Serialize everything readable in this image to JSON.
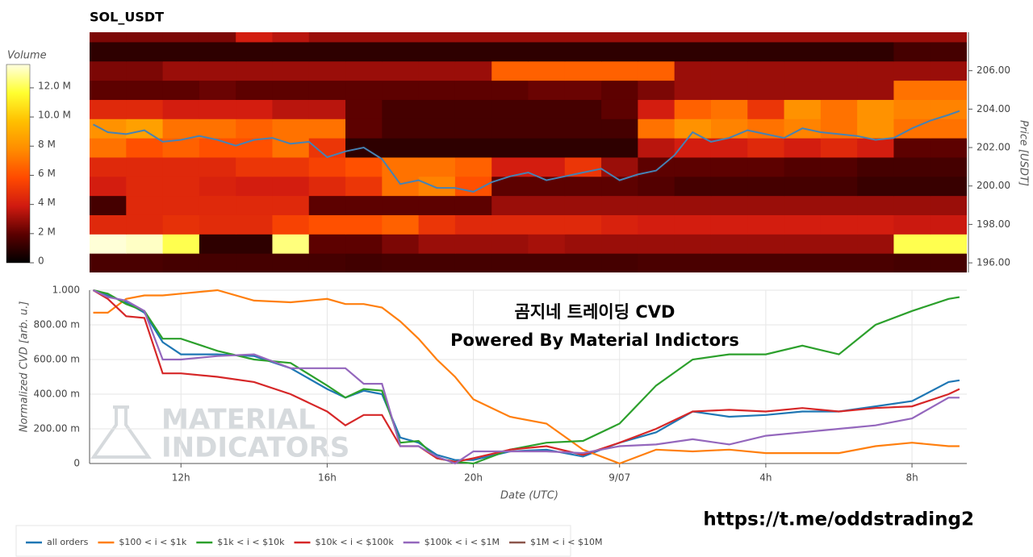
{
  "chart_data": [
    {
      "type": "heatmap",
      "title": "SOL_USDT",
      "x": [
        10,
        11,
        12,
        13,
        14,
        15,
        16,
        17,
        18,
        19,
        20,
        21,
        22,
        23,
        24,
        25,
        26,
        27,
        28,
        29,
        30,
        31,
        32,
        33
      ],
      "xlim": [
        9.5,
        33.5
      ],
      "y": [
        196,
        197,
        198,
        199,
        200,
        201,
        202,
        203,
        204,
        205,
        206,
        207,
        208
      ],
      "ylim": [
        195.5,
        208
      ],
      "ylabel": "Price [USDT]",
      "yticks": [
        {
          "value": 196,
          "label": "196.00"
        },
        {
          "value": 198,
          "label": "198.00"
        },
        {
          "value": 200,
          "label": "200.00"
        },
        {
          "value": 202,
          "label": "202.00"
        },
        {
          "value": 204,
          "label": "204.00"
        },
        {
          "value": 206,
          "label": "206.00"
        }
      ],
      "z": [
        [
          1.6,
          1.6,
          1.5,
          1.5,
          1.5,
          1.5,
          1.5,
          1.4,
          1.5,
          1.5,
          1.5,
          1.5,
          1.5,
          1.5,
          1.5,
          1.6,
          1.6,
          1.6,
          1.6,
          1.6,
          1.6,
          1.6,
          1.5,
          1.5
        ],
        [
          13.5,
          13.3,
          12,
          1,
          1,
          12.5,
          2,
          2,
          2.5,
          3,
          3,
          3,
          3.2,
          3,
          3,
          3,
          3,
          3,
          3,
          3,
          3,
          3,
          12,
          12
        ],
        [
          4.5,
          4.5,
          4.8,
          4.6,
          4.6,
          5.5,
          6,
          6,
          6.5,
          5,
          4.5,
          4.5,
          4.5,
          4.5,
          4.2,
          4,
          4,
          4,
          4,
          4,
          4,
          4,
          3.8,
          3.8
        ],
        [
          1.5,
          4.5,
          4.5,
          4.5,
          4.5,
          4.5,
          2,
          2,
          2,
          2,
          2,
          3,
          3,
          3,
          3,
          3,
          3,
          3,
          3,
          3,
          3,
          3,
          3,
          3
        ],
        [
          4,
          4.5,
          4.5,
          4.2,
          4,
          4,
          4.5,
          5,
          7,
          7.5,
          6,
          2,
          2,
          2,
          2,
          1.8,
          1.5,
          1.5,
          1.5,
          1.5,
          1.5,
          1.2,
          1.2,
          1.2
        ],
        [
          4.5,
          4.5,
          4.5,
          4.5,
          5,
          5,
          5.5,
          6,
          7,
          7,
          6.5,
          4,
          4,
          5,
          3,
          2,
          2,
          2,
          2,
          1.8,
          1.8,
          1.5,
          1.5,
          1.5
        ],
        [
          7,
          6,
          6.5,
          6,
          6,
          7,
          5,
          1,
          1,
          1,
          1,
          1,
          1,
          1,
          1,
          3.5,
          4,
          4,
          4.5,
          4,
          4.5,
          4,
          2,
          2
        ],
        [
          8,
          8.5,
          7,
          7,
          6.5,
          7,
          7,
          2,
          1.5,
          1.5,
          1.5,
          1.5,
          1.5,
          1.5,
          1.5,
          7,
          8,
          7.5,
          7,
          7.5,
          7,
          8,
          7,
          7
        ],
        [
          4.5,
          4.5,
          4,
          4,
          4,
          3.5,
          3.5,
          2,
          1.5,
          1.5,
          1.5,
          1.5,
          1.5,
          1.5,
          2,
          4,
          6.5,
          7,
          5,
          8,
          7,
          8,
          7.5,
          7.5
        ],
        [
          2,
          2,
          2,
          2.2,
          2,
          2,
          2,
          2,
          2,
          2,
          2,
          2,
          2.2,
          2.2,
          2,
          2.5,
          3,
          3,
          3,
          3,
          3,
          3,
          7,
          7
        ],
        [
          2.5,
          2.5,
          3,
          3,
          3,
          3,
          3,
          3,
          3,
          3,
          3,
          6.5,
          6.5,
          6.5,
          6.5,
          6.5,
          3,
          3,
          3,
          3,
          3,
          3,
          3,
          3
        ],
        [
          1,
          1,
          1,
          1,
          1,
          1,
          1,
          1,
          1,
          1,
          1,
          1,
          1,
          1,
          1,
          1,
          1,
          1,
          1,
          1,
          1,
          1,
          1.5,
          1.5
        ],
        [
          2.5,
          2.5,
          2.5,
          2.5,
          4,
          3.5,
          3,
          3,
          3,
          3,
          3,
          3,
          3,
          3,
          3,
          3,
          3,
          3,
          3,
          3,
          3,
          3,
          3,
          3
        ]
      ],
      "zlim": [
        0,
        13.6
      ],
      "colorscale": [
        "#000000",
        "#5a0000",
        "#d01a10",
        "#ff4a00",
        "#ff8c00",
        "#ffc000",
        "#ffff30",
        "#ffffe0"
      ],
      "colorbar": {
        "title": "Volume",
        "ticks": [
          0,
          {
            "value": 2,
            "label": "2 M"
          },
          {
            "value": 4,
            "label": "4 M"
          },
          {
            "value": 6,
            "label": "6 M"
          },
          {
            "value": 8,
            "label": "8 M"
          },
          {
            "value": 10,
            "label": "10.0 M"
          },
          {
            "value": 12,
            "label": "12.0 M"
          }
        ]
      },
      "price_line": {
        "color": "#4682b4",
        "x": [
          9.6,
          10,
          10.5,
          11,
          11.5,
          12,
          12.5,
          13,
          13.5,
          14,
          14.5,
          15,
          15.5,
          16,
          16.5,
          17,
          17.5,
          18,
          18.5,
          19,
          19.5,
          20,
          20.5,
          21,
          21.5,
          22,
          22.5,
          23,
          23.5,
          24,
          24.5,
          25,
          25.5,
          26,
          26.5,
          27,
          27.5,
          28,
          28.5,
          29,
          29.5,
          30,
          30.5,
          31,
          31.5,
          32,
          32.5,
          33,
          33.3
        ],
        "values": [
          203.2,
          202.8,
          202.7,
          202.9,
          202.3,
          202.4,
          202.6,
          202.4,
          202.1,
          202.4,
          202.5,
          202.2,
          202.3,
          201.5,
          201.8,
          202.0,
          201.4,
          200.1,
          200.3,
          199.9,
          199.9,
          199.7,
          200.2,
          200.5,
          200.7,
          200.3,
          200.5,
          200.7,
          200.9,
          200.3,
          200.6,
          200.8,
          201.6,
          202.8,
          202.3,
          202.5,
          202.9,
          202.7,
          202.5,
          203.0,
          202.8,
          202.7,
          202.6,
          202.4,
          202.5,
          203.0,
          203.4,
          203.7,
          203.9
        ]
      }
    },
    {
      "type": "line",
      "x": [
        9.6,
        10,
        10.5,
        11,
        11.5,
        12,
        13,
        14,
        15,
        16,
        16.5,
        17,
        17.5,
        18,
        18.5,
        19,
        19.5,
        20,
        21,
        22,
        23,
        24,
        25,
        26,
        27,
        28,
        29,
        30,
        31,
        32,
        33,
        33.3
      ],
      "xlim": [
        9.5,
        33.5
      ],
      "xticks": [
        {
          "value": 12,
          "label": "12h"
        },
        {
          "value": 16,
          "label": "16h"
        },
        {
          "value": 20,
          "label": "20h"
        },
        {
          "value": 24,
          "label": "9/07"
        },
        {
          "value": 28,
          "label": "4h"
        },
        {
          "value": 32,
          "label": "8h"
        }
      ],
      "xlabel": "Date (UTC)",
      "ylim": [
        0,
        1
      ],
      "yticks": [
        0,
        {
          "value": 0.2,
          "label": "200.00 m"
        },
        {
          "value": 0.4,
          "label": "400.00 m"
        },
        {
          "value": 0.6,
          "label": "600.00 m"
        },
        {
          "value": 0.8,
          "label": "800.00 m"
        },
        {
          "value": 1,
          "label": "1.000"
        }
      ],
      "ylabel": "Normalized CVD [arb. u.]",
      "grid": true,
      "legend": "bottom",
      "annotations": [
        "곰지네 트레이딩 CVD",
        "Powered By Material Indictors"
      ],
      "series": [
        {
          "name": "all orders",
          "color": "#1f77b4",
          "values": [
            1.0,
            0.97,
            0.93,
            0.87,
            0.7,
            0.63,
            0.63,
            0.62,
            0.55,
            0.43,
            0.38,
            0.42,
            0.4,
            0.15,
            0.12,
            0.05,
            0.02,
            0.02,
            0.07,
            0.08,
            0.04,
            0.12,
            0.18,
            0.3,
            0.27,
            0.28,
            0.3,
            0.3,
            0.33,
            0.36,
            0.47,
            0.48
          ]
        },
        {
          "name": "$100 < i < $1k",
          "color": "#ff7f0e",
          "values": [
            0.87,
            0.87,
            0.95,
            0.97,
            0.97,
            0.98,
            1.0,
            0.94,
            0.93,
            0.95,
            0.92,
            0.92,
            0.9,
            0.82,
            0.72,
            0.6,
            0.5,
            0.37,
            0.27,
            0.23,
            0.08,
            0.0,
            0.08,
            0.07,
            0.08,
            0.06,
            0.06,
            0.06,
            0.1,
            0.12,
            0.1,
            0.1
          ]
        },
        {
          "name": "$1k < i < $10k",
          "color": "#2ca02c",
          "values": [
            1.0,
            0.98,
            0.92,
            0.88,
            0.72,
            0.72,
            0.65,
            0.6,
            0.58,
            0.45,
            0.38,
            0.43,
            0.42,
            0.12,
            0.13,
            0.03,
            0.01,
            0.0,
            0.08,
            0.12,
            0.13,
            0.23,
            0.45,
            0.6,
            0.63,
            0.63,
            0.68,
            0.63,
            0.8,
            0.88,
            0.95,
            0.96
          ]
        },
        {
          "name": "$10k < i < $100k",
          "color": "#d62728",
          "values": [
            1.0,
            0.95,
            0.85,
            0.84,
            0.52,
            0.52,
            0.5,
            0.47,
            0.4,
            0.3,
            0.22,
            0.28,
            0.28,
            0.1,
            0.1,
            0.03,
            0.01,
            0.03,
            0.08,
            0.1,
            0.05,
            0.12,
            0.2,
            0.3,
            0.31,
            0.3,
            0.32,
            0.3,
            0.32,
            0.33,
            0.4,
            0.43
          ]
        },
        {
          "name": "$100k < i < $1M",
          "color": "#9467bd",
          "values": [
            1.0,
            0.96,
            0.94,
            0.88,
            0.6,
            0.6,
            0.62,
            0.63,
            0.55,
            0.55,
            0.55,
            0.46,
            0.46,
            0.1,
            0.1,
            0.04,
            0.0,
            0.07,
            0.07,
            0.07,
            0.06,
            0.1,
            0.11,
            0.14,
            0.11,
            0.16,
            0.18,
            0.2,
            0.22,
            0.26,
            0.38,
            0.38
          ]
        },
        {
          "name": "$1M < i < $10M",
          "color": "#8c564b",
          "values": [
            null,
            null,
            null,
            null,
            null,
            null,
            null,
            null,
            null,
            null,
            null,
            null,
            null,
            null,
            null,
            null,
            null,
            null,
            null,
            null,
            null,
            null,
            null,
            null,
            null,
            null,
            null,
            null,
            null,
            null,
            null,
            null
          ]
        }
      ]
    }
  ],
  "watermark": [
    "MATERIAL",
    "INDICATORS"
  ],
  "url": "https://t.me/oddstrading2"
}
